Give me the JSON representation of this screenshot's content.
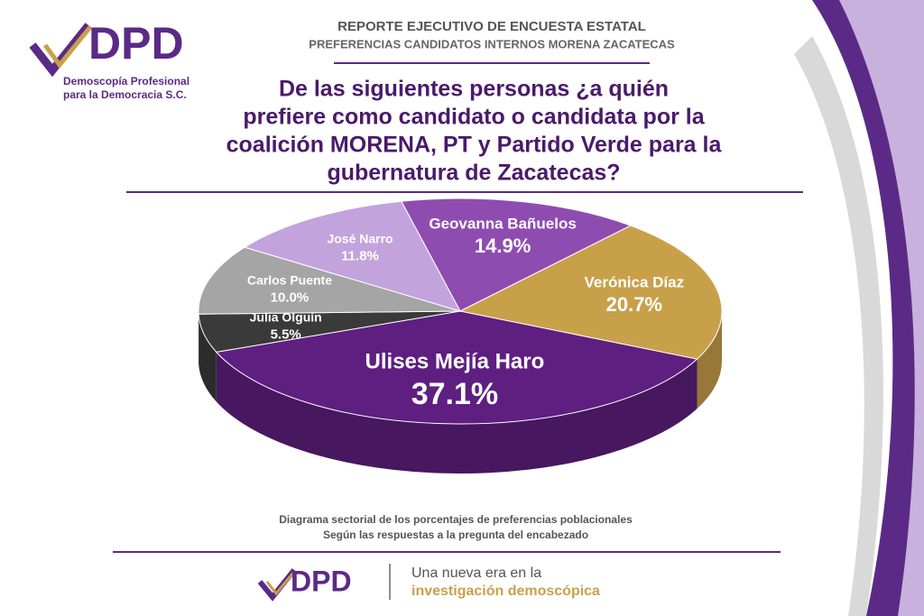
{
  "header": {
    "logo": "DPD",
    "org_name": [
      "Demoscopía Profesional",
      "para la Democracia S.C."
    ],
    "report_title": "REPORTE EJECUTIVO DE ENCUESTA ESTATAL",
    "report_subtitle": "PREFERENCIAS CANDIDATOS INTERNOS MORENA ZACATECAS"
  },
  "chart_data": {
    "type": "pie",
    "title": [
      "De las siguientes personas ¿a quién",
      "prefiere como candidato o candidata por la",
      "coalición MORENA, PT y Partido Verde para la",
      "gubernatura de Zacatecas?"
    ],
    "categories": [
      "Geovanna Bañuelos",
      "Verónica Díaz",
      "Ulises Mejía Haro",
      "Julia Olguín",
      "Carlos Puente",
      "José Narro"
    ],
    "values": [
      14.9,
      20.7,
      37.1,
      5.5,
      10,
      11.8
    ],
    "value_labels": [
      "14.9%",
      "20.7%",
      "37.1%",
      "5.5%",
      "10.0%",
      "11.8%"
    ],
    "colors": [
      "#8e4cb0",
      "#c9a04a",
      "#5e1f80",
      "#3a3a3a",
      "#a5a5a5",
      "#c3a3dc"
    ]
  },
  "caption": [
    "Diagrama sectorial de los porcentajes de preferencias poblacionales",
    "Según las respuestas a la pregunta del encabezado"
  ],
  "footer": {
    "logo": "DPD",
    "tagline": [
      "Una nueva era en la",
      "investigación demoscópica"
    ]
  }
}
